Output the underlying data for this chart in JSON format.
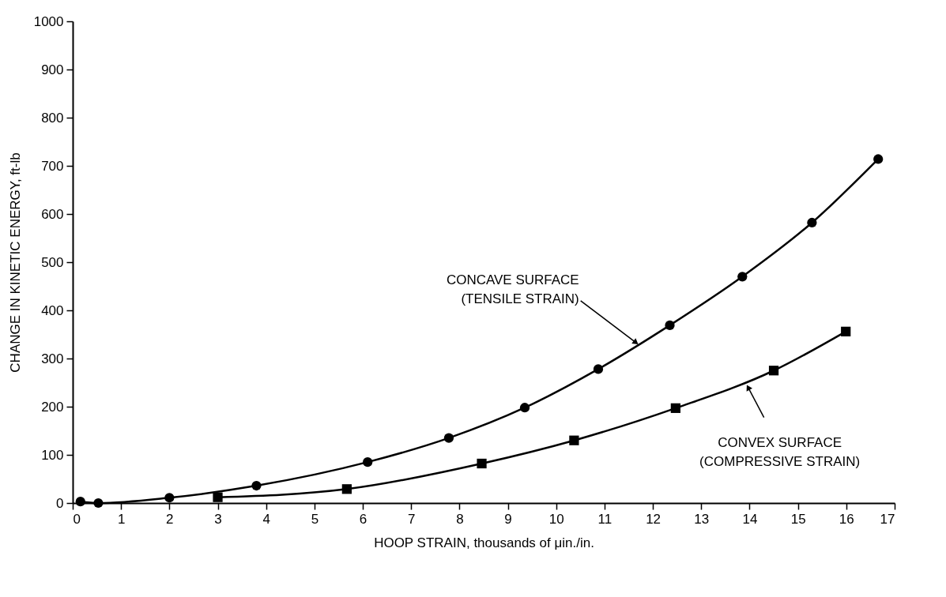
{
  "chart_data": {
    "type": "line",
    "xlabel": "HOOP STRAIN, thousands of μin./in.",
    "ylabel": "CHANGE IN KINETIC ENERGY, ft-lb",
    "series": [
      {
        "color": "#000000",
        "marker": "circle",
        "x": [
          0.16,
          0.53,
          2.0,
          3.8,
          6.1,
          7.78,
          9.35,
          10.87,
          12.35,
          13.85,
          15.29,
          16.66
        ],
        "values": [
          3,
          0,
          11,
          36,
          85,
          135,
          198,
          278,
          369,
          470,
          582,
          714
        ]
      },
      {
        "color": "#000000",
        "marker": "square",
        "x": [
          3.0,
          5.67,
          8.46,
          10.37,
          12.47,
          14.5,
          15.99
        ],
        "values": [
          12,
          29,
          82,
          130,
          197,
          275,
          356
        ]
      }
    ],
    "annotations": [
      {
        "text": "CONCAVE SURFACE\n(TENSILE STRAIN)",
        "x": 11.65,
        "y": 333
      },
      {
        "text": "CONVEX SURFACE\n(COMPRESSIVE STRAIN)",
        "x": 13.97,
        "y": 240
      }
    ],
    "xlim": [
      0,
      17
    ],
    "xticks": [
      0,
      1,
      2,
      3,
      4,
      5,
      6,
      7,
      8,
      9,
      10,
      11,
      12,
      13,
      14,
      15,
      16,
      17
    ],
    "ylim": [
      0,
      1000
    ],
    "yticks": [
      0,
      100,
      200,
      300,
      400,
      500,
      600,
      700,
      800,
      900,
      1000
    ],
    "grid": false,
    "line_style": "solid"
  }
}
